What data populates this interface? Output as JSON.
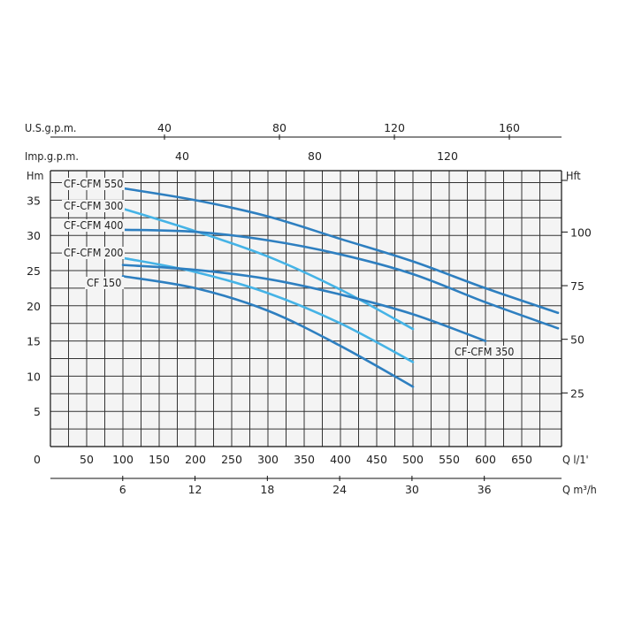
{
  "chart_data": {
    "type": "line",
    "title": "",
    "top_axes": [
      {
        "label": "U.S.g.p.m.",
        "ticks": [
          "40",
          "80",
          "120",
          "160"
        ],
        "values": [
          40,
          80,
          120,
          160
        ]
      },
      {
        "label": "Imp.g.p.m.",
        "ticks": [
          "40",
          "80",
          "120"
        ],
        "values": [
          40,
          80,
          120
        ]
      }
    ],
    "left_axis": {
      "label": "Hm",
      "ylim": [
        0,
        38
      ],
      "ticks": [
        "0",
        "5",
        "10",
        "15",
        "20",
        "25",
        "30",
        "35"
      ],
      "values": [
        0,
        5,
        10,
        15,
        20,
        25,
        30,
        35
      ]
    },
    "right_axis": {
      "label": "Hft",
      "ticks": [
        "25",
        "50",
        "75",
        "100"
      ],
      "values": [
        25,
        50,
        75,
        100
      ]
    },
    "x_axis": {
      "label": "Q l/1'",
      "xlim": [
        0,
        700
      ],
      "ticks": [
        "50",
        "100",
        "150",
        "200",
        "250",
        "300",
        "350",
        "400",
        "450",
        "500",
        "550",
        "600",
        "650"
      ],
      "values": [
        50,
        100,
        150,
        200,
        250,
        300,
        350,
        400,
        450,
        500,
        550,
        600,
        650
      ]
    },
    "bottom_axis": {
      "label": "Q m³/h",
      "ticks": [
        "6",
        "12",
        "18",
        "24",
        "30",
        "36"
      ],
      "values": [
        6,
        12,
        18,
        24,
        30,
        36
      ]
    },
    "grid": true,
    "series": [
      {
        "name": "CF-CFM 550",
        "color": "#2e7fc0",
        "x": [
          100,
          200,
          300,
          400,
          500,
          600,
          700
        ],
        "y": [
          36.7,
          35.0,
          32.7,
          29.5,
          26.3,
          22.5,
          19.0
        ]
      },
      {
        "name": "CF-CFM 300",
        "color": "#45b3e6",
        "x": [
          100,
          200,
          300,
          400,
          500
        ],
        "y": [
          33.8,
          30.6,
          27.0,
          22.3,
          16.7
        ]
      },
      {
        "name": "CF-CFM 400",
        "color": "#2e7fc0",
        "x": [
          100,
          200,
          300,
          400,
          500,
          600,
          700
        ],
        "y": [
          30.8,
          30.5,
          29.3,
          27.3,
          24.5,
          20.5,
          16.8
        ]
      },
      {
        "name": "CF-CFM 200",
        "color": "#45b3e6",
        "x": [
          100,
          200,
          300,
          400,
          500
        ],
        "y": [
          26.8,
          24.8,
          21.8,
          17.5,
          12.0
        ]
      },
      {
        "name": "CF-CFM 350",
        "color": "#2e7fc0",
        "x": [
          100,
          200,
          300,
          400,
          500,
          600
        ],
        "y": [
          25.8,
          25.1,
          23.8,
          21.6,
          18.8,
          15.0
        ]
      },
      {
        "name": "CF 150",
        "color": "#2e7fc0",
        "x": [
          100,
          200,
          300,
          400,
          500
        ],
        "y": [
          24.2,
          22.5,
          19.3,
          14.3,
          8.5
        ]
      }
    ]
  }
}
